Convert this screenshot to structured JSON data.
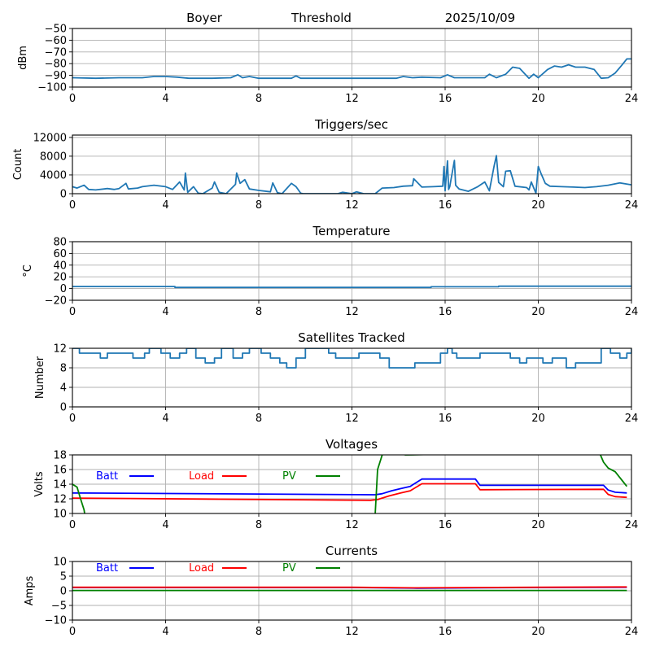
{
  "figure": {
    "title_parts": [
      "Boyer",
      "Threshold",
      "2025/10/09"
    ]
  },
  "chart_data": [
    {
      "id": "threshold",
      "type": "line",
      "title": "",
      "xlabel": "",
      "ylabel": "dBm",
      "xlim": [
        0,
        24
      ],
      "ylim": [
        -100,
        -50
      ],
      "xticks": [
        0,
        4,
        8,
        12,
        16,
        20,
        24
      ],
      "yticks": [
        -100,
        -90,
        -80,
        -70,
        -60,
        -50
      ],
      "ytick_labels": [
        "−100",
        "−90",
        "−80",
        "−70",
        "−60",
        "−50"
      ],
      "grid": true,
      "series": [
        {
          "name": "threshold",
          "color": "#1f77b4",
          "x": [
            0,
            1,
            2,
            3,
            3.5,
            4,
            4.5,
            5,
            6,
            6.8,
            7.1,
            7.3,
            7.6,
            8,
            9.4,
            9.6,
            9.8,
            12,
            13.9,
            14.2,
            14.6,
            15,
            15.8,
            16.1,
            16.4,
            17,
            17.7,
            17.9,
            18.2,
            18.6,
            18.9,
            19.2,
            19.6,
            19.8,
            20,
            20.4,
            20.7,
            21,
            21.3,
            21.6,
            22,
            22.4,
            22.7,
            23,
            23.3,
            23.6,
            23.8,
            24
          ],
          "values": [
            -92,
            -92.5,
            -92,
            -92,
            -91,
            -91,
            -91.5,
            -92.5,
            -92.5,
            -92,
            -89.5,
            -92,
            -91,
            -92.5,
            -92.5,
            -90.5,
            -92.5,
            -92.5,
            -92.5,
            -91,
            -92,
            -91.5,
            -92,
            -89.5,
            -92,
            -92,
            -92,
            -89,
            -92,
            -89,
            -83,
            -84,
            -92.5,
            -89,
            -92,
            -85,
            -82,
            -83,
            -81,
            -83,
            -83,
            -85,
            -92.5,
            -92,
            -88,
            -81,
            -76,
            -76
          ]
        }
      ]
    },
    {
      "id": "triggers",
      "type": "line",
      "title": "Triggers/sec",
      "xlabel": "",
      "ylabel": "Count",
      "xlim": [
        0,
        24
      ],
      "ylim": [
        0,
        12500
      ],
      "xticks": [
        0,
        4,
        8,
        12,
        16,
        20,
        24
      ],
      "yticks": [
        0,
        4000,
        8000,
        12000
      ],
      "ytick_labels": [
        "0",
        "4000",
        "8000",
        "12000"
      ],
      "grid": true,
      "series": [
        {
          "name": "triggers",
          "color": "#1f77b4",
          "x": [
            0,
            0.2,
            0.5,
            0.7,
            1,
            1.5,
            1.8,
            2,
            2.3,
            2.4,
            2.8,
            3,
            3.5,
            4,
            4.3,
            4.6,
            4.8,
            4.85,
            4.95,
            5.2,
            5.4,
            5.6,
            6,
            6.1,
            6.3,
            6.6,
            7,
            7.05,
            7.2,
            7.4,
            7.6,
            8,
            8.5,
            8.6,
            8.8,
            9,
            9.4,
            9.6,
            9.8,
            9.9,
            10.5,
            11,
            11.4,
            11.6,
            12,
            12.2,
            12.5,
            13,
            13.3,
            13.8,
            14.2,
            14.6,
            14.65,
            15,
            15.5,
            15.9,
            15.95,
            16,
            16.1,
            16.15,
            16.2,
            16.4,
            16.45,
            16.6,
            17,
            17.4,
            17.7,
            17.9,
            18.1,
            18.2,
            18.3,
            18.5,
            18.6,
            18.8,
            19,
            19.5,
            19.6,
            19.7,
            19.9,
            20,
            20.1,
            20.3,
            20.5,
            21,
            21.5,
            22,
            22.5,
            23,
            23.5,
            24
          ],
          "values": [
            1500,
            1200,
            1800,
            900,
            800,
            1100,
            900,
            1100,
            2200,
            1000,
            1200,
            1500,
            1800,
            1500,
            900,
            2500,
            800,
            4400,
            300,
            1500,
            100,
            0,
            1200,
            2500,
            300,
            0,
            2000,
            4400,
            2200,
            3000,
            1000,
            700,
            400,
            2300,
            200,
            0,
            2200,
            1500,
            100,
            0,
            0,
            0,
            0,
            300,
            0,
            400,
            0,
            0,
            1200,
            1300,
            1600,
            1700,
            3200,
            1400,
            1500,
            1600,
            5800,
            600,
            7000,
            900,
            1500,
            7100,
            1800,
            1000,
            500,
            1500,
            2500,
            600,
            5800,
            8100,
            2400,
            1500,
            4800,
            4900,
            1600,
            1300,
            800,
            2500,
            100,
            5800,
            4500,
            2200,
            1600,
            1500,
            1400,
            1300,
            1500,
            1800,
            2300,
            1900
          ]
        }
      ]
    },
    {
      "id": "temperature",
      "type": "line",
      "title": "Temperature",
      "xlabel": "",
      "ylabel": "°C",
      "ylabel_display": "°C",
      "xlim": [
        0,
        24
      ],
      "ylim": [
        -20,
        80
      ],
      "xticks": [
        0,
        4,
        8,
        12,
        16,
        20,
        24
      ],
      "yticks": [
        -20,
        0,
        20,
        40,
        60,
        80
      ],
      "ytick_labels": [
        "−20",
        "0",
        "20",
        "40",
        "60",
        "80"
      ],
      "grid": true,
      "series": [
        {
          "name": "temperature",
          "color": "#1f77b4",
          "x": [
            0,
            4.4,
            4.4,
            15.4,
            15.4,
            18.3,
            18.3,
            24
          ],
          "values": [
            3.5,
            3.5,
            2.0,
            2.0,
            3.0,
            3.0,
            4.0,
            4.0
          ]
        }
      ]
    },
    {
      "id": "satellites",
      "type": "line",
      "step": true,
      "title": "Satellites Tracked",
      "xlabel": "",
      "ylabel": "Number",
      "xlim": [
        0,
        24
      ],
      "ylim": [
        0,
        12
      ],
      "xticks": [
        0,
        4,
        8,
        12,
        16,
        20,
        24
      ],
      "yticks": [
        0,
        4,
        8,
        12
      ],
      "ytick_labels": [
        "0",
        "4",
        "8",
        "12"
      ],
      "grid": true,
      "series": [
        {
          "name": "satellites",
          "color": "#1f77b4",
          "x": [
            0,
            0.3,
            0.6,
            1.2,
            1.5,
            1.8,
            2.6,
            3.1,
            3.3,
            3.8,
            4.2,
            4.6,
            4.9,
            5.3,
            5.7,
            6.1,
            6.4,
            6.9,
            7.3,
            7.6,
            8.1,
            8.5,
            8.9,
            9.2,
            9.6,
            10,
            10.5,
            11,
            11.3,
            11.7,
            12.3,
            12.8,
            13.2,
            13.6,
            14.5,
            14.7,
            15.3,
            15.8,
            16.1,
            16.3,
            16.5,
            17,
            17.5,
            18.2,
            18.8,
            19.2,
            19.5,
            19.7,
            20.2,
            20.6,
            21.2,
            21.6,
            22.3,
            22.7,
            23.1,
            23.5,
            23.8,
            24
          ],
          "values": [
            12,
            11,
            11,
            10,
            11,
            11,
            10,
            11,
            12,
            11,
            10,
            11,
            12,
            10,
            9,
            10,
            12,
            10,
            11,
            12,
            11,
            10,
            9,
            8,
            10,
            12,
            12,
            11,
            10,
            10,
            11,
            11,
            10,
            8,
            8,
            9,
            9,
            11,
            12,
            11,
            10,
            10,
            11,
            11,
            10,
            9,
            10,
            10,
            9,
            10,
            8,
            9,
            9,
            12,
            11,
            10,
            11,
            12
          ]
        }
      ]
    },
    {
      "id": "voltages",
      "type": "line",
      "title": "Voltages",
      "xlabel": "",
      "ylabel": "Volts",
      "xlim": [
        0,
        24
      ],
      "ylim": [
        10,
        18
      ],
      "xticks": [
        0,
        4,
        8,
        12,
        16,
        20,
        24
      ],
      "yticks": [
        10,
        12,
        14,
        16,
        18
      ],
      "ytick_labels": [
        "10",
        "12",
        "14",
        "16",
        "18"
      ],
      "grid": true,
      "legend": {
        "placement": "top-left-row",
        "entries": [
          "Batt",
          "Load",
          "PV"
        ]
      },
      "series": [
        {
          "name": "Batt",
          "color": "#0000ff",
          "x": [
            0,
            13,
            13.3,
            13.7,
            14.1,
            14.5,
            15,
            17.3,
            17.5,
            22.8,
            23,
            23.3,
            23.8
          ],
          "values": [
            12.8,
            12.55,
            12.7,
            13.1,
            13.4,
            13.7,
            14.7,
            14.7,
            13.85,
            13.85,
            13.2,
            12.9,
            12.8
          ]
        },
        {
          "name": "Load",
          "color": "#ff0000",
          "x": [
            0,
            12.8,
            13.1,
            13.6,
            14.1,
            14.5,
            15,
            17.3,
            17.5,
            22.8,
            23,
            23.3,
            23.8
          ],
          "values": [
            12.1,
            11.8,
            11.9,
            12.4,
            12.8,
            13.1,
            14.05,
            14.05,
            13.25,
            13.3,
            12.6,
            12.3,
            12.2
          ]
        },
        {
          "name": "PV",
          "color": "#008000",
          "x": [
            0,
            0.2,
            0.35,
            0.5,
            0.55,
            12.9,
            13.0,
            13.1,
            13.3,
            13.6,
            14.3,
            22.6,
            22.8,
            23.0,
            23.3,
            23.8
          ],
          "values": [
            14.0,
            13.6,
            12.0,
            10.5,
            9.5,
            9.5,
            10.0,
            16.0,
            18.0,
            18.5,
            18.0,
            18.5,
            17.0,
            16.2,
            15.7,
            13.7
          ]
        }
      ]
    },
    {
      "id": "currents",
      "type": "line",
      "title": "Currents",
      "xlabel": "",
      "ylabel": "Amps",
      "xlim": [
        0,
        24
      ],
      "ylim": [
        -10,
        10
      ],
      "xticks": [
        0,
        4,
        8,
        12,
        16,
        20,
        24
      ],
      "yticks": [
        -10,
        -5,
        0,
        5,
        10
      ],
      "ytick_labels": [
        "−10",
        "−5",
        "0",
        "5",
        "10"
      ],
      "grid": true,
      "legend": {
        "placement": "top-left-row",
        "entries": [
          "Batt",
          "Load",
          "PV"
        ]
      },
      "series": [
        {
          "name": "Batt",
          "color": "#0000ff",
          "x": [
            0,
            12,
            14.8,
            17.3,
            20,
            23.8
          ],
          "values": [
            1.1,
            1.1,
            0.9,
            1.0,
            1.1,
            1.2
          ]
        },
        {
          "name": "Load",
          "color": "#ff0000",
          "x": [
            0,
            12,
            14.8,
            17.3,
            20,
            23.8
          ],
          "values": [
            1.2,
            1.2,
            1.0,
            1.1,
            1.2,
            1.3
          ]
        },
        {
          "name": "PV",
          "color": "#008000",
          "x": [
            0,
            23.8
          ],
          "values": [
            0.1,
            0.1
          ]
        }
      ]
    }
  ]
}
